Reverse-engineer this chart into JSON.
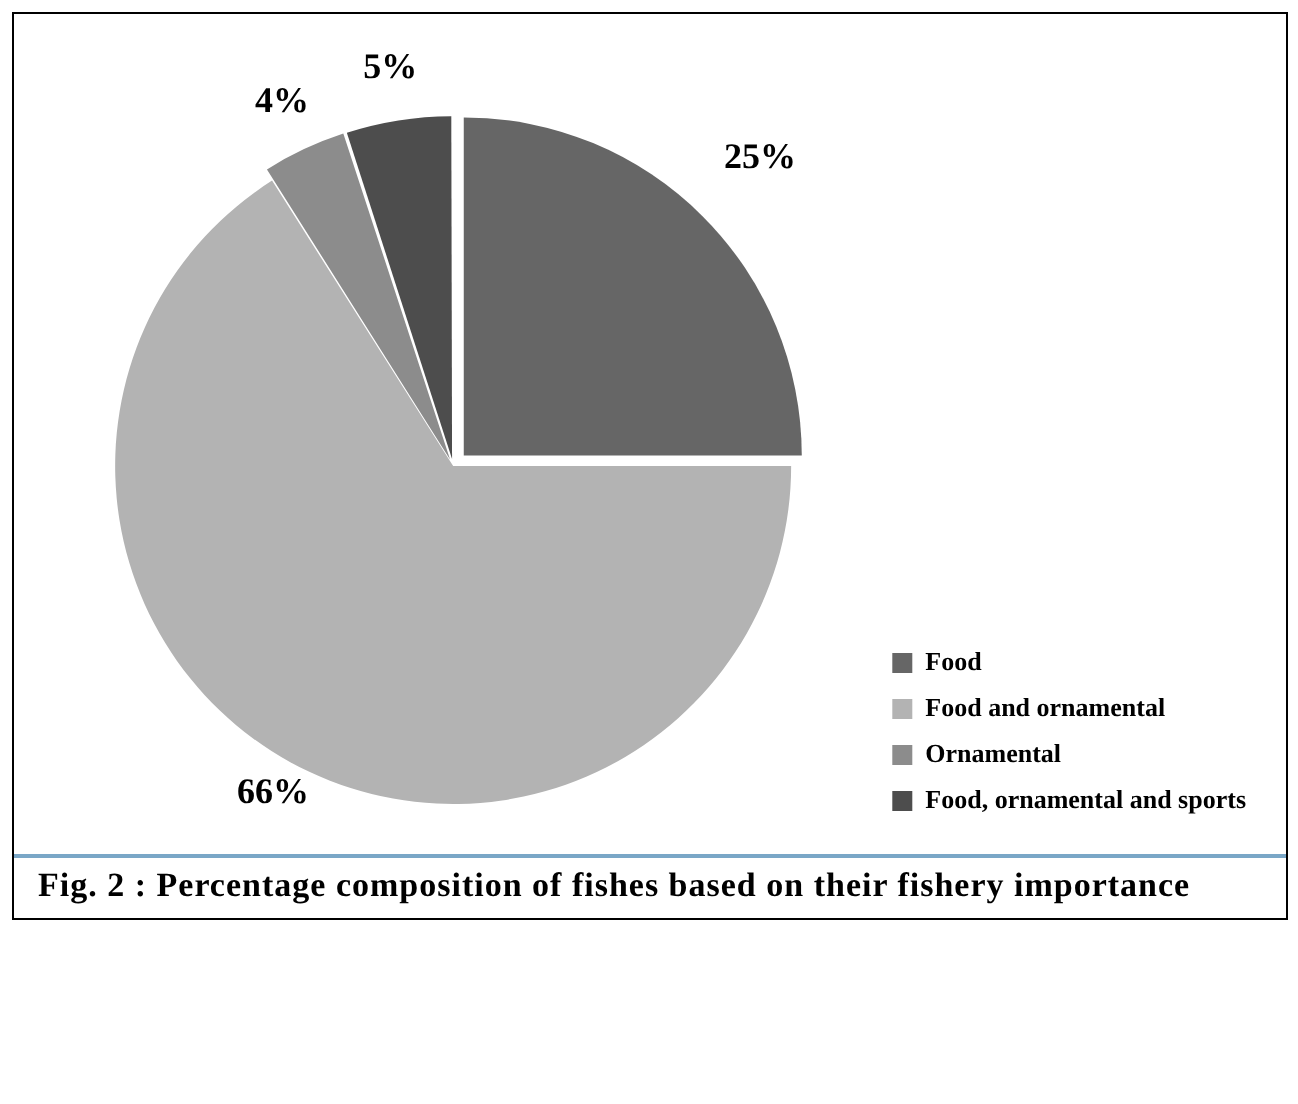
{
  "chart_data": {
    "type": "pie",
    "title": "Fig. 2 : Percentage composition of fishes based on their fishery importance",
    "categories": [
      "Food",
      "Food and ornamental",
      "Ornamental",
      "Food, ornamental and sports"
    ],
    "values": [
      25,
      66,
      4,
      5
    ],
    "colors": [
      "#666666",
      "#b3b3b3",
      "#8c8c8c",
      "#4d4d4d"
    ],
    "value_labels": [
      "25%",
      "66%",
      "4%",
      "5%"
    ],
    "legend": "bottom right"
  }
}
